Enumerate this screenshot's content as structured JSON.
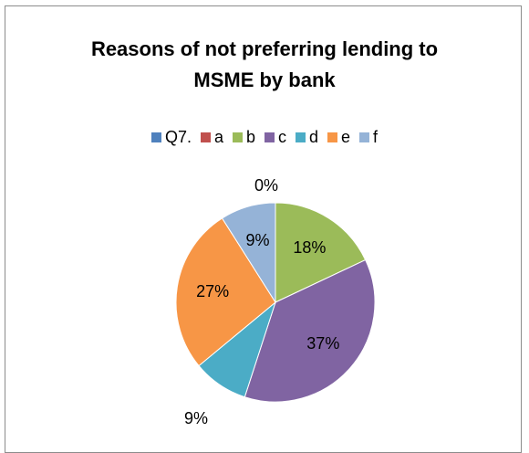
{
  "chart_data": {
    "type": "pie",
    "title_line1": "Reasons of not preferring lending to",
    "title_line2": "MSME by bank",
    "legend_placement": "top",
    "slices": [
      {
        "name": "Q7.",
        "value": 0,
        "label": "",
        "color": "#4f81bd"
      },
      {
        "name": "a",
        "value": 0,
        "label": "0%",
        "color": "#c0504d"
      },
      {
        "name": "b",
        "value": 18,
        "label": "18%",
        "color": "#9bbb59"
      },
      {
        "name": "c",
        "value": 37,
        "label": "37%",
        "color": "#8064a2"
      },
      {
        "name": "d",
        "value": 9,
        "label": "9%",
        "color": "#4bacc6"
      },
      {
        "name": "e",
        "value": 27,
        "label": "27%",
        "color": "#f79646"
      },
      {
        "name": "f",
        "value": 9,
        "label": "9%",
        "color": "#95b3d7"
      }
    ]
  }
}
